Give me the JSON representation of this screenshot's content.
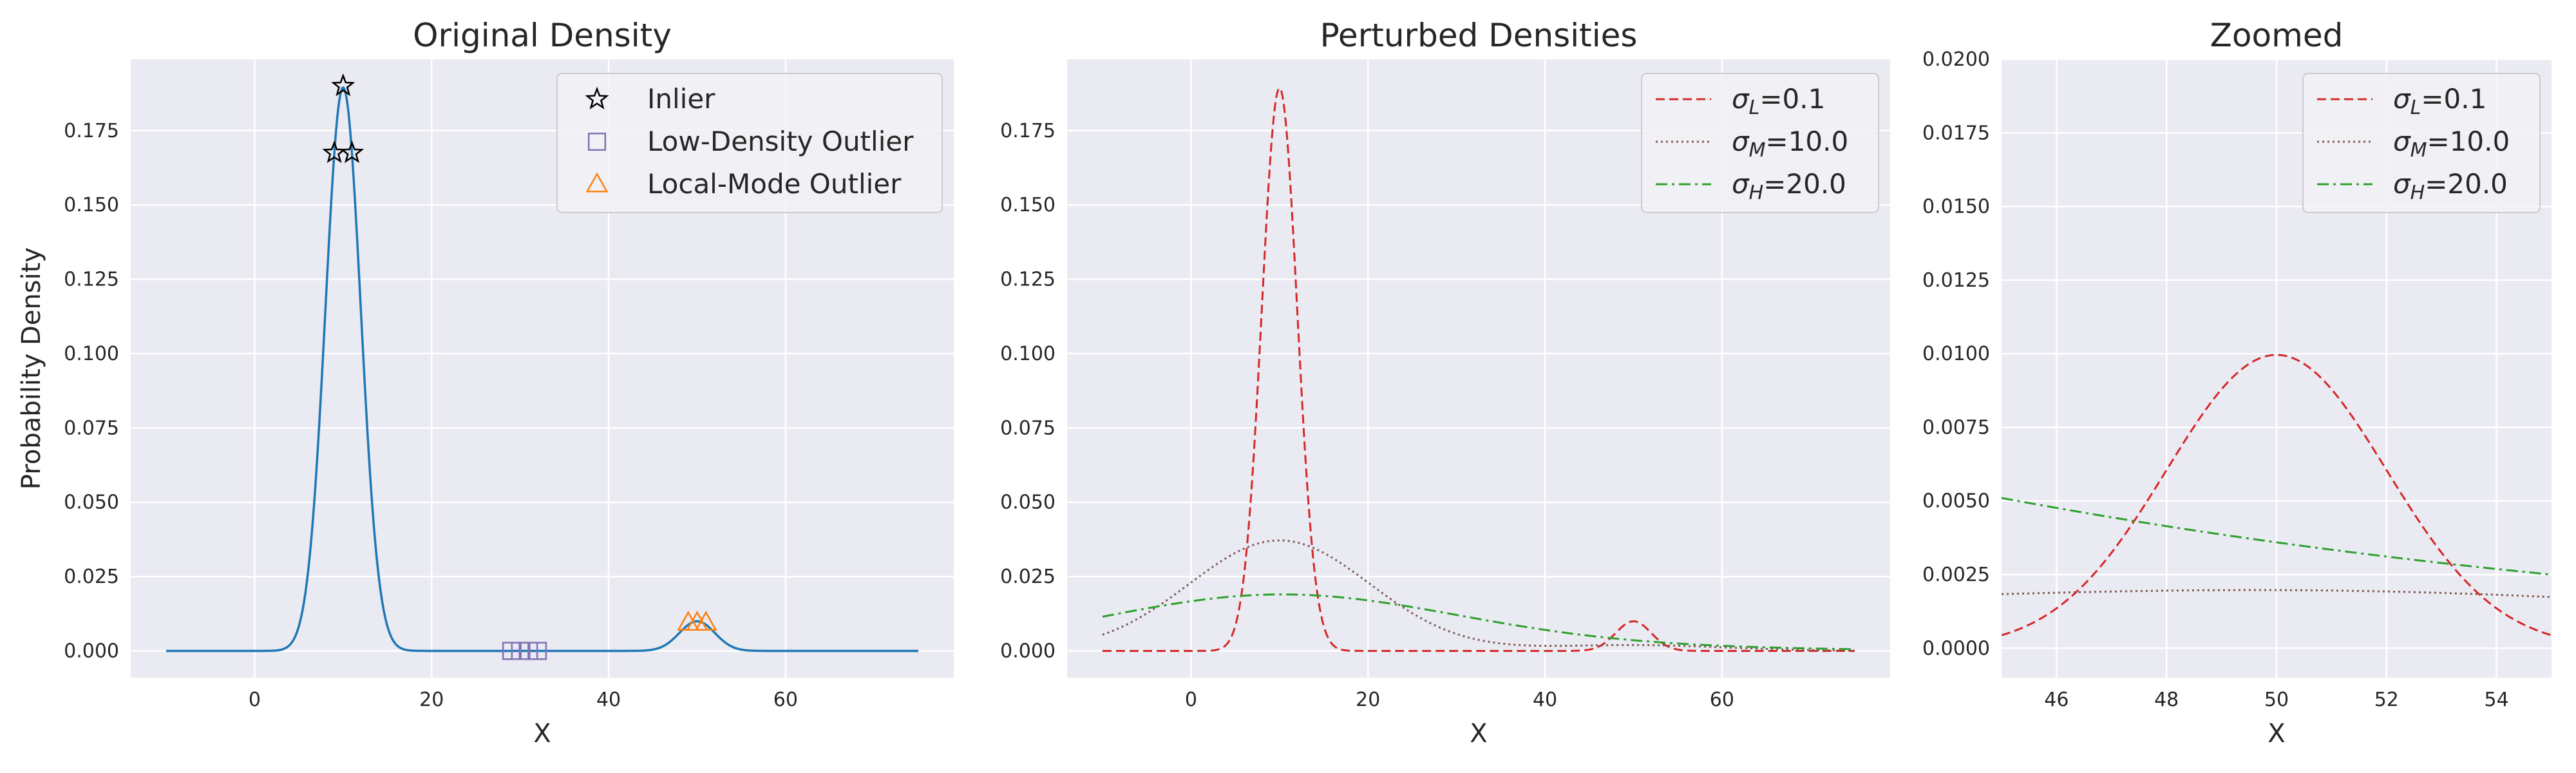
{
  "chart_data": [
    {
      "type": "line",
      "title": "Original Density",
      "xlabel": "X",
      "ylabel": "Probability Density",
      "xlim": [
        -14,
        79
      ],
      "ylim": [
        -0.009,
        0.199
      ],
      "xticks": [
        0,
        20,
        40,
        60
      ],
      "xtick_labels": [
        "0",
        "20",
        "40",
        "60"
      ],
      "yticks": [
        0.0,
        0.025,
        0.05,
        0.075,
        0.1,
        0.125,
        0.15,
        0.175
      ],
      "ytick_labels": [
        "0.000",
        "0.025",
        "0.050",
        "0.075",
        "0.100",
        "0.125",
        "0.150",
        "0.175"
      ],
      "grid": true,
      "legend_position": "upper right",
      "density": {
        "x_range": [
          -10,
          75
        ],
        "components": [
          {
            "mean": 10,
            "sd": 2,
            "weight": 0.95
          },
          {
            "mean": 50,
            "sd": 2,
            "weight": 0.05
          }
        ],
        "color": "#1f77b4"
      },
      "series": [
        {
          "name": "Inlier",
          "marker": "star",
          "color": "#000000",
          "points": [
            [
              10,
              0.19
            ],
            [
              9,
              0.1675
            ],
            [
              11,
              0.1675
            ]
          ]
        },
        {
          "name": "Low-Density Outlier",
          "marker": "square",
          "color": "#8172b3",
          "points": [
            [
              29,
              0.0
            ],
            [
              30,
              0.0
            ],
            [
              31,
              0.0
            ],
            [
              32,
              0.0
            ]
          ]
        },
        {
          "name": "Local-Mode Outlier",
          "marker": "triangle",
          "color": "#ff7f0e",
          "points": [
            [
              49,
              0.0095
            ],
            [
              50,
              0.0095
            ],
            [
              51,
              0.0095
            ]
          ]
        }
      ],
      "legend": [
        {
          "label": "Inlier",
          "marker": "star",
          "color": "#000000"
        },
        {
          "label": "Low-Density Outlier",
          "marker": "square",
          "color": "#8172b3"
        },
        {
          "label": "Local-Mode Outlier",
          "marker": "triangle",
          "color": "#ff7f0e"
        }
      ]
    },
    {
      "type": "line",
      "title": "Perturbed Densities",
      "xlabel": "X",
      "ylabel": "",
      "xlim": [
        -14,
        79
      ],
      "ylim": [
        -0.009,
        0.199
      ],
      "xticks": [
        0,
        20,
        40,
        60
      ],
      "xtick_labels": [
        "0",
        "20",
        "40",
        "60"
      ],
      "yticks": [
        0.0,
        0.025,
        0.05,
        0.075,
        0.1,
        0.125,
        0.15,
        0.175
      ],
      "ytick_labels": [
        "0.000",
        "0.025",
        "0.050",
        "0.075",
        "0.100",
        "0.125",
        "0.150",
        "0.175"
      ],
      "grid": true,
      "legend_position": "upper right",
      "x_range": [
        -10,
        75
      ],
      "series": [
        {
          "name": "σL=0.1",
          "label_main": "σ",
          "label_sub": "L",
          "label_rest": "=0.1",
          "sigma": 0.1,
          "color": "#d62728",
          "dash": "14,7"
        },
        {
          "name": "σM=10.0",
          "label_main": "σ",
          "label_sub": "M",
          "label_rest": "=10.0",
          "sigma": 10.0,
          "color": "#7f5a52",
          "dash": "3,5"
        },
        {
          "name": "σH=20.0",
          "label_main": "σ",
          "label_sub": "H",
          "label_rest": "=20.0",
          "sigma": 20.0,
          "color": "#2ca02c",
          "dash": "18,7,4,7"
        }
      ],
      "base_components": [
        {
          "mean": 10,
          "sd": 2,
          "weight": 0.95
        },
        {
          "mean": 50,
          "sd": 2,
          "weight": 0.05
        }
      ]
    },
    {
      "type": "line",
      "title": "Zoomed",
      "xlabel": "X",
      "ylabel": "",
      "xlim": [
        45,
        55
      ],
      "ylim": [
        -0.001,
        0.02
      ],
      "xticks": [
        46,
        48,
        50,
        52,
        54
      ],
      "xtick_labels": [
        "46",
        "48",
        "50",
        "52",
        "54"
      ],
      "yticks": [
        0.0,
        0.0025,
        0.005,
        0.0075,
        0.01,
        0.0125,
        0.015,
        0.0175,
        0.02
      ],
      "ytick_labels": [
        "0.0000",
        "0.0025",
        "0.0050",
        "0.0075",
        "0.0100",
        "0.0125",
        "0.0150",
        "0.0175",
        "0.0200"
      ],
      "grid": true,
      "legend_position": "upper right",
      "x_range": [
        45,
        55
      ],
      "series": [
        {
          "name": "σL=0.1",
          "label_main": "σ",
          "label_sub": "L",
          "label_rest": "=0.1",
          "sigma": 0.1,
          "color": "#d62728",
          "dash": "14,7"
        },
        {
          "name": "σM=10.0",
          "label_main": "σ",
          "label_sub": "M",
          "label_rest": "=10.0",
          "sigma": 10.0,
          "color": "#7f5a52",
          "dash": "3,5"
        },
        {
          "name": "σH=20.0",
          "label_main": "σ",
          "label_sub": "H",
          "label_rest": "=20.0",
          "sigma": 20.0,
          "color": "#2ca02c",
          "dash": "18,7,4,7"
        }
      ],
      "base_components": [
        {
          "mean": 10,
          "sd": 2,
          "weight": 0.95
        },
        {
          "mean": 50,
          "sd": 2,
          "weight": 0.05
        }
      ]
    }
  ]
}
